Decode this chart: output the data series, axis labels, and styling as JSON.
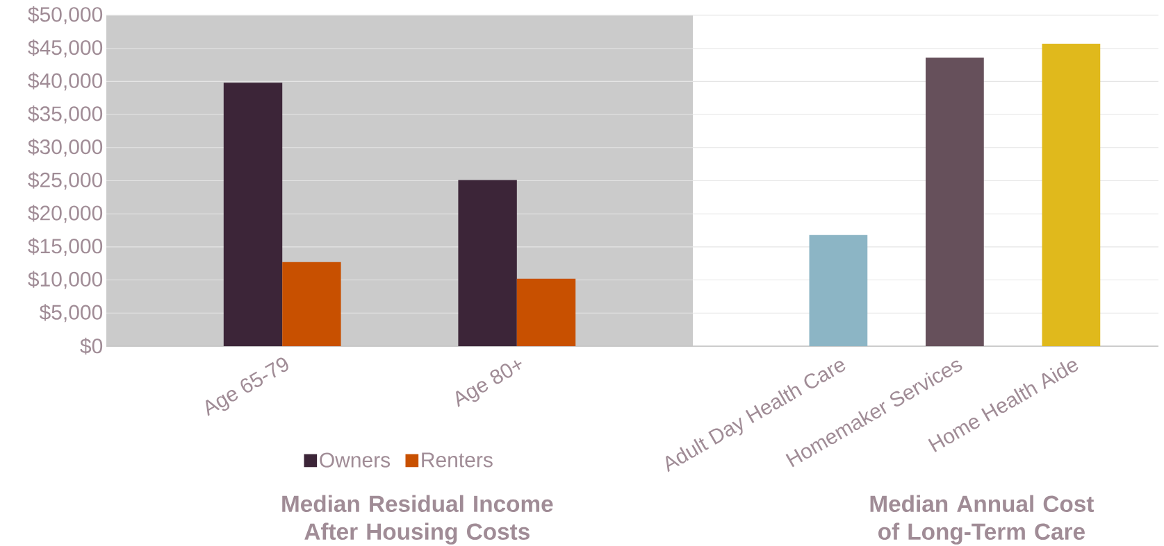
{
  "chart_data": [
    {
      "type": "bar",
      "title": "Median Residual Income After Housing Costs",
      "categories": [
        "Age 65-79",
        "Age 80+"
      ],
      "series": [
        {
          "name": "Owners",
          "color": "#3c2538",
          "values": [
            39800,
            25100
          ]
        },
        {
          "name": "Renters",
          "color": "#c85000",
          "values": [
            12700,
            10200
          ]
        }
      ],
      "ylim": [
        0,
        50000
      ],
      "yticks": [
        {
          "value": 0,
          "label": "$0"
        },
        {
          "value": 5000,
          "label": "$5,000"
        },
        {
          "value": 10000,
          "label": "$10,000"
        },
        {
          "value": 15000,
          "label": "$15,000"
        },
        {
          "value": 20000,
          "label": "$20,000"
        },
        {
          "value": 25000,
          "label": "$25,000"
        },
        {
          "value": 30000,
          "label": "$30,000"
        },
        {
          "value": 35000,
          "label": "$35,000"
        },
        {
          "value": 40000,
          "label": "$40,000"
        },
        {
          "value": 45000,
          "label": "$45,000"
        },
        {
          "value": 50000,
          "label": "$50,000"
        }
      ],
      "grid": "y",
      "legend": "bottom"
    },
    {
      "type": "bar",
      "title": "Median Annual Cost of Long-Term Care",
      "categories": [
        "Adult Day Health Care",
        "Homemaker Services",
        "Home Health Aide"
      ],
      "values": [
        16800,
        43600,
        45700
      ],
      "colors": [
        "#8cb5c5",
        "#66505b",
        "#e0b91c"
      ],
      "ylim": [
        0,
        50000
      ],
      "yticks": [
        0,
        5000,
        10000,
        15000,
        20000,
        25000,
        30000,
        35000,
        40000,
        45000,
        50000
      ],
      "grid": "y",
      "tick_labels": "x"
    }
  ]
}
